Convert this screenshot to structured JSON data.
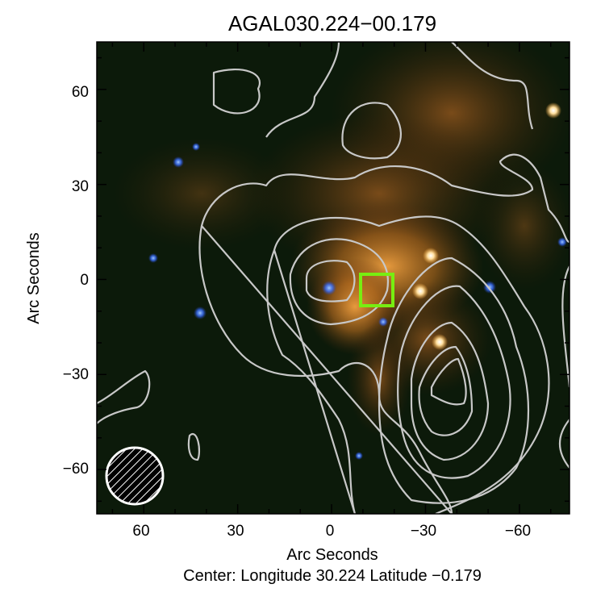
{
  "chart_data": {
    "type": "heatmap",
    "title": "AGAL030.224−00.179",
    "xlabel": "Arc Seconds",
    "ylabel": "Arc Seconds",
    "caption": "Center:  Longitude 30.224 Latitude −0.179",
    "xlim": [
      75,
      -76
    ],
    "ylim": [
      -74,
      75
    ],
    "xticks": [
      60,
      30,
      0,
      -30,
      -60
    ],
    "yticks": [
      60,
      30,
      0,
      -30,
      -60
    ],
    "xtick_labels": [
      "60",
      "30",
      "0",
      "−30",
      "−60"
    ],
    "ytick_labels": [
      "60",
      "30",
      "0",
      "−30",
      "−60"
    ],
    "grid": false,
    "background": "three-color infrared image (orange diffuse emission, blue point sources)",
    "contour_color": "#c8c8c8",
    "marker": {
      "shape": "square",
      "color": "#77ee11",
      "x": -15,
      "y": -3.5,
      "size": 10
    },
    "beam": {
      "shape": "hatched-circle",
      "color": "#ffffff",
      "x": 62,
      "y": -62.6,
      "diameter": 18.5
    }
  }
}
